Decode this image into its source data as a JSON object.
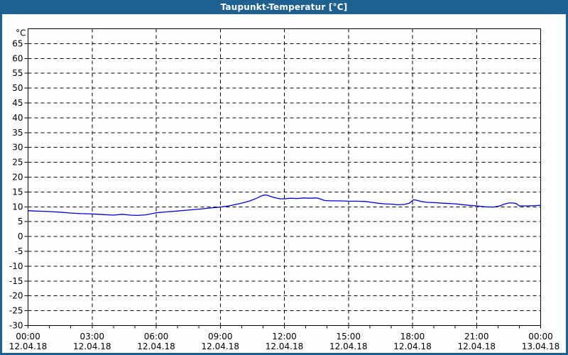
{
  "window": {
    "title": "Taupunkt-Temperatur [°C]"
  },
  "colors": {
    "titlebar_bg": "#1e608f",
    "titlebar_text": "#ffffff",
    "window_border": "#1e608f",
    "panel_bg": "#fcfffd",
    "axis": "#000000",
    "grid": "#000000",
    "line": "#0000cd",
    "label": "#000000"
  },
  "chart_data": {
    "type": "line",
    "title": "Taupunkt-Temperatur [°C]",
    "ylabel": "°C",
    "xlabel": "",
    "ylim": [
      -30,
      70
    ],
    "ytick_min": -30,
    "ytick_max": 65,
    "ytick_step": 5,
    "xlim_hours": [
      0,
      24
    ],
    "x_minor_tick_step_hours": 1,
    "x_grid_hours": [
      3,
      6,
      9,
      12,
      15,
      18,
      21
    ],
    "grid_style": "dashed",
    "legend": "none",
    "xticks": [
      {
        "hour": 0,
        "time": "00:00",
        "date": "12.04.18"
      },
      {
        "hour": 3,
        "time": "03:00",
        "date": "12.04.18"
      },
      {
        "hour": 6,
        "time": "06:00",
        "date": "12.04.18"
      },
      {
        "hour": 9,
        "time": "09:00",
        "date": "12.04.18"
      },
      {
        "hour": 12,
        "time": "12:00",
        "date": "12.04.18"
      },
      {
        "hour": 15,
        "time": "15:00",
        "date": "12.04.18"
      },
      {
        "hour": 18,
        "time": "18:00",
        "date": "12.04.18"
      },
      {
        "hour": 21,
        "time": "21:00",
        "date": "12.04.18"
      },
      {
        "hour": 24,
        "time": "00:00",
        "date": "13.04.18"
      }
    ],
    "series": [
      {
        "name": "Taupunkt-Temperatur",
        "color": "#0000cd",
        "points": [
          [
            0,
            8.7
          ],
          [
            0.3,
            8.6
          ],
          [
            0.7,
            8.5
          ],
          [
            1,
            8.4
          ],
          [
            1.5,
            8.2
          ],
          [
            2,
            7.9
          ],
          [
            2.5,
            7.7
          ],
          [
            3,
            7.6
          ],
          [
            3.5,
            7.4
          ],
          [
            4,
            7.2
          ],
          [
            4.4,
            7.5
          ],
          [
            4.8,
            7.2
          ],
          [
            5.1,
            7.1
          ],
          [
            5.5,
            7.3
          ],
          [
            5.8,
            7.7
          ],
          [
            6,
            8.0
          ],
          [
            6.5,
            8.3
          ],
          [
            7,
            8.6
          ],
          [
            7.5,
            8.9
          ],
          [
            8,
            9.2
          ],
          [
            8.5,
            9.6
          ],
          [
            9,
            9.9
          ],
          [
            9.4,
            10.3
          ],
          [
            9.8,
            10.9
          ],
          [
            10.1,
            11.4
          ],
          [
            10.4,
            12.0
          ],
          [
            10.7,
            12.9
          ],
          [
            10.9,
            13.6
          ],
          [
            11.05,
            14.0
          ],
          [
            11.2,
            13.9
          ],
          [
            11.4,
            13.4
          ],
          [
            11.6,
            13.0
          ],
          [
            11.8,
            12.7
          ],
          [
            12,
            12.7
          ],
          [
            12.3,
            12.9
          ],
          [
            12.6,
            12.8
          ],
          [
            12.9,
            13.0
          ],
          [
            13.2,
            12.9
          ],
          [
            13.5,
            13.0
          ],
          [
            13.7,
            12.6
          ],
          [
            13.9,
            12.1
          ],
          [
            14.2,
            12.0
          ],
          [
            14.6,
            12.0
          ],
          [
            15,
            11.9
          ],
          [
            15.4,
            11.9
          ],
          [
            15.8,
            11.8
          ],
          [
            16.1,
            11.5
          ],
          [
            16.4,
            11.2
          ],
          [
            16.7,
            11.0
          ],
          [
            17,
            10.9
          ],
          [
            17.3,
            10.7
          ],
          [
            17.6,
            10.8
          ],
          [
            17.85,
            11.2
          ],
          [
            18.05,
            12.4
          ],
          [
            18.2,
            12.2
          ],
          [
            18.4,
            11.8
          ],
          [
            18.7,
            11.5
          ],
          [
            19,
            11.4
          ],
          [
            19.5,
            11.2
          ],
          [
            20,
            11.0
          ],
          [
            20.5,
            10.6
          ],
          [
            21,
            10.3
          ],
          [
            21.4,
            10.0
          ],
          [
            21.8,
            9.9
          ],
          [
            22.1,
            10.3
          ],
          [
            22.3,
            10.9
          ],
          [
            22.5,
            11.3
          ],
          [
            22.7,
            11.3
          ],
          [
            22.85,
            11.1
          ],
          [
            23,
            10.3
          ],
          [
            23.4,
            10.3
          ],
          [
            23.7,
            10.4
          ],
          [
            24,
            10.5
          ]
        ]
      }
    ]
  }
}
